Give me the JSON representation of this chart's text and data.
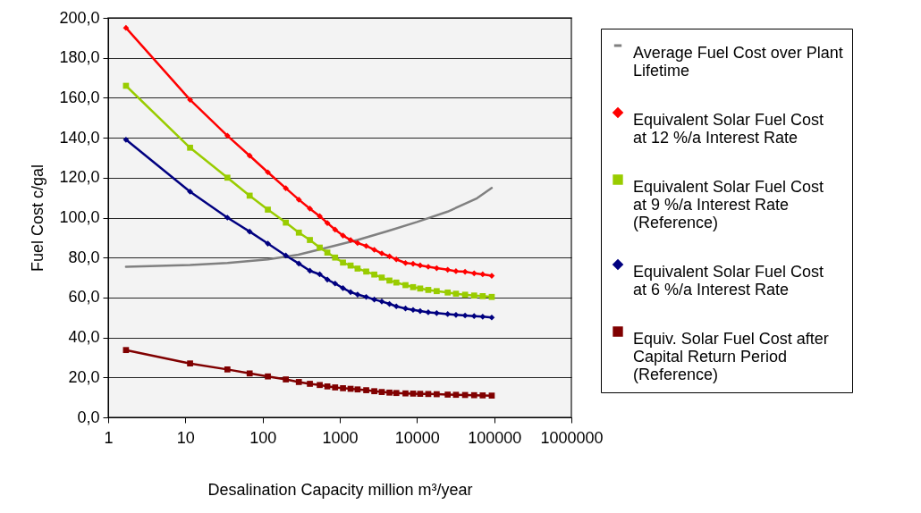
{
  "chart_data": {
    "type": "line",
    "xlabel": "Desalination Capacity million m³/year",
    "ylabel": "Fuel Cost c/gal",
    "log": "x",
    "grid": "y",
    "legend": "right",
    "xlim": [
      1,
      1000000
    ],
    "xticks": [
      1,
      10,
      100,
      1000,
      10000,
      100000,
      1000000
    ],
    "ylim": [
      0,
      200
    ],
    "yticks": [
      {
        "value": 0,
        "label": "0,0"
      },
      {
        "value": 20,
        "label": "20,0"
      },
      {
        "value": 40,
        "label": "40,0"
      },
      {
        "value": 60,
        "label": "60,0"
      },
      {
        "value": 80,
        "label": "80,0"
      },
      {
        "value": 100,
        "label": "100,0"
      },
      {
        "value": 120,
        "label": "120,0"
      },
      {
        "value": 140,
        "label": "140,0"
      },
      {
        "value": 160,
        "label": "160,0"
      },
      {
        "value": 180,
        "label": "180,0"
      },
      {
        "value": 200,
        "label": "200,0"
      }
    ],
    "x": [
      1.7,
      11.5,
      35,
      68,
      117,
      200,
      295,
      410,
      550,
      690,
      870,
      1100,
      1380,
      1700,
      2200,
      2800,
      3500,
      4400,
      5400,
      7100,
      8900,
      11000,
      14000,
      18000,
      25000,
      32000,
      42000,
      55000,
      71000,
      93000
    ],
    "series": [
      {
        "name": "Average Fuel Cost over Plant Lifetime",
        "color": "#808080",
        "marker": "none",
        "x": [
          1.7,
          11.5,
          35,
          117,
          290,
          690,
          1700,
          4200,
          10000,
          25000,
          60000,
          93000
        ],
        "values": [
          75.4,
          76.3,
          77.3,
          79.1,
          81.4,
          85,
          88.8,
          93.3,
          97.8,
          103,
          109.7,
          114.9
        ]
      },
      {
        "name": "Equivalent Solar Fuel Cost at 12 %/a Interest Rate",
        "color": "#ff0000",
        "marker": "diamond",
        "values": [
          195,
          159,
          141,
          131,
          122.7,
          114.7,
          109,
          104.5,
          100.7,
          97.3,
          94,
          91,
          88.8,
          87.3,
          85.8,
          83.9,
          82.1,
          80.6,
          79.1,
          77.3,
          76.9,
          76.1,
          75.4,
          74.7,
          73.9,
          73.2,
          72.9,
          72.1,
          71.6,
          70.9
        ]
      },
      {
        "name": "Equivalent Solar Fuel Cost at 9 %/a Interest Rate (Reference)",
        "color": "#99cc00",
        "marker": "square",
        "values": [
          166,
          135,
          120,
          111,
          104,
          97.5,
          92.5,
          88.8,
          85,
          82.5,
          80,
          77.5,
          76,
          74.5,
          73,
          71.5,
          70,
          68.5,
          67.5,
          66.2,
          65.2,
          64.5,
          63.8,
          63.2,
          62.5,
          61.9,
          61.4,
          61,
          60.7,
          60.3
        ]
      },
      {
        "name": "Equivalent Solar Fuel Cost at 6 %/a Interest Rate",
        "color": "#000080",
        "marker": "diamond",
        "values": [
          139,
          113,
          100,
          93,
          87,
          81,
          77,
          73.4,
          71.6,
          69,
          67,
          64.7,
          62.7,
          61.5,
          60.3,
          59,
          58,
          56.8,
          55.6,
          54.5,
          53.8,
          53.2,
          52.6,
          52.2,
          51.7,
          51.3,
          51,
          50.7,
          50.4,
          50
        ]
      },
      {
        "name": "Equiv. Solar Fuel Cost after Capital Return Period (Reference)",
        "color": "#800000",
        "marker": "square",
        "values": [
          33.7,
          27,
          24,
          22,
          20.5,
          19,
          17.7,
          16.8,
          16.2,
          15.5,
          15,
          14.6,
          14.3,
          14,
          13.6,
          13.1,
          12.7,
          12.4,
          12.2,
          12,
          11.9,
          11.8,
          11.7,
          11.6,
          11.4,
          11.3,
          11.2,
          11.1,
          11,
          10.9
        ]
      }
    ]
  }
}
